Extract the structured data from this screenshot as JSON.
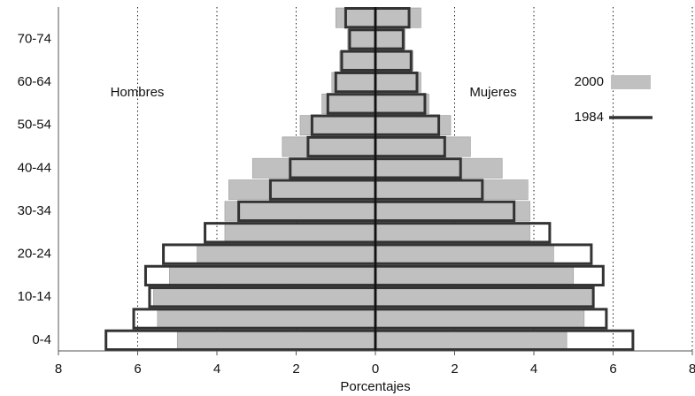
{
  "chart_data": {
    "type": "pyramid",
    "categories": [
      "0-4",
      null,
      "10-14",
      null,
      "20-24",
      null,
      "30-34",
      null,
      "40-44",
      null,
      "50-54",
      null,
      "60-64",
      null,
      "70-74",
      null
    ],
    "left_label": "Hombres",
    "right_label": "Mujeres",
    "x_label": "Porcentajes",
    "series": [
      {
        "name": "2000",
        "color": "#c0c0c0",
        "filled": true,
        "values_left": [
          -5.0,
          -5.5,
          -5.6,
          -5.2,
          -4.5,
          -3.8,
          -3.8,
          -3.7,
          -3.1,
          -2.35,
          -1.9,
          -1.35,
          -1.1,
          -0.9,
          -0.7,
          -1.0
        ],
        "values_right": [
          4.83,
          5.27,
          5.5,
          5.0,
          4.5,
          3.9,
          3.9,
          3.85,
          3.2,
          2.4,
          1.9,
          1.35,
          1.15,
          0.95,
          0.75,
          1.15
        ]
      },
      {
        "name": "1984",
        "color": "#333333",
        "filled": false,
        "values_left": [
          -6.8,
          -6.1,
          -5.7,
          -5.8,
          -5.35,
          -4.3,
          -3.45,
          -2.65,
          -2.15,
          -1.7,
          -1.6,
          -1.2,
          -1.0,
          -0.85,
          -0.65,
          -0.75
        ],
        "values_right": [
          6.5,
          5.83,
          5.5,
          5.75,
          5.45,
          4.4,
          3.5,
          2.7,
          2.15,
          1.75,
          1.6,
          1.25,
          1.05,
          0.9,
          0.7,
          0.85
        ]
      }
    ],
    "xlim": [
      -8,
      8
    ],
    "xticks": [
      {
        "value": -8,
        "label": "8"
      },
      {
        "value": -6,
        "label": "6"
      },
      {
        "value": -4,
        "label": "4"
      },
      {
        "value": -2,
        "label": "2"
      },
      0,
      2,
      4,
      6,
      8
    ],
    "grid": true,
    "legend": "right"
  }
}
